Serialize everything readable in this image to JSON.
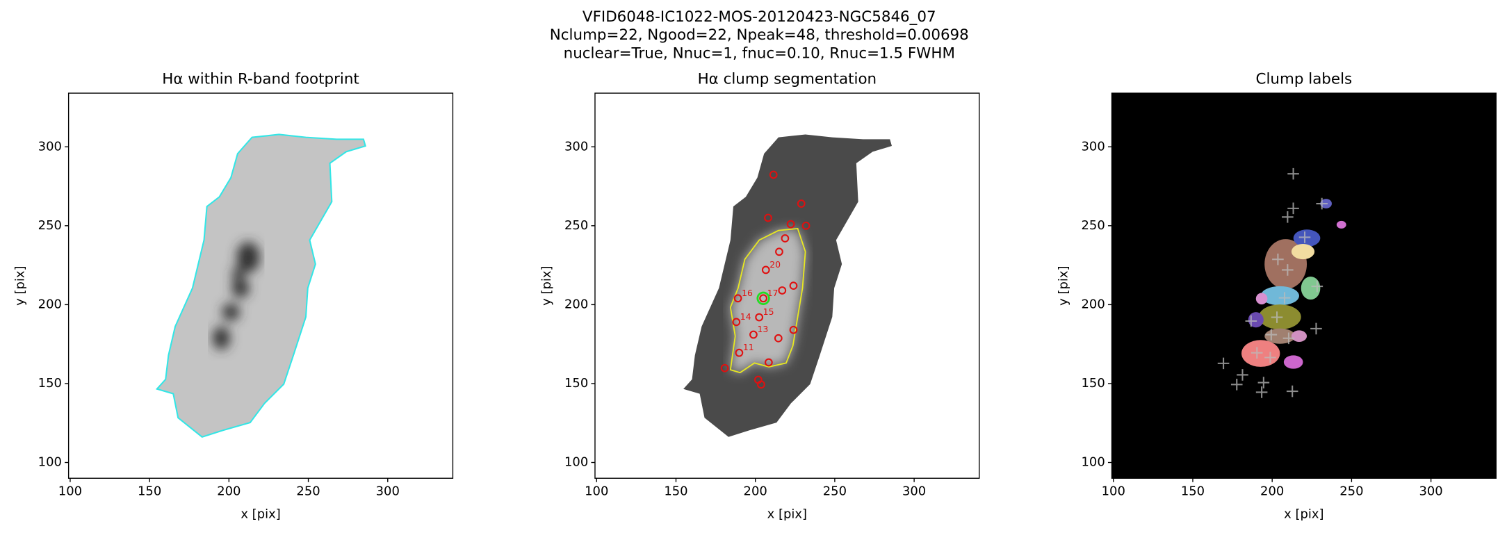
{
  "figure_title": [
    "VFID6048-IC1022-MOS-20120423-NGC5846_07",
    "Nclump=22, Ngood=22, Npeak=48, threshold=0.00698",
    "nuclear=True, Nnuc=1, fnuc=0.10, Rnuc=1.5 FWHM"
  ],
  "chart_data": [
    {
      "type": "image",
      "title": "Hα within R-band footprint",
      "xlabel": "x [pix]",
      "ylabel": "y [pix]",
      "xlim": [
        99,
        341
      ],
      "ylim": [
        90,
        334
      ],
      "xticks": [
        100,
        150,
        200,
        250,
        300
      ],
      "yticks": [
        100,
        150,
        200,
        250,
        300
      ],
      "contour_color": "#33e6e6"
    },
    {
      "type": "segmentation",
      "title": "Hα clump segmentation",
      "xlabel": "x [pix]",
      "ylabel": "y [pix]",
      "xlim": [
        99,
        341
      ],
      "ylim": [
        90,
        334
      ],
      "xticks": [
        100,
        150,
        200,
        250,
        300
      ],
      "yticks": [
        100,
        150,
        200,
        250,
        300
      ],
      "color": "#e01010",
      "contour_color": "#e8e820",
      "x": [
        211.4,
        228.9,
        208,
        222.3,
        231.9,
        218.7,
        215,
        206.6,
        216.9,
        224,
        189,
        205,
        202.4,
        188,
        224,
        198.8,
        214.5,
        189.8,
        208.4,
        180.7,
        201.8,
        203.6
      ],
      "values": [
        282.3,
        264,
        255,
        251,
        250,
        242,
        233.5,
        222,
        209,
        212,
        204,
        204,
        192,
        189,
        184,
        181,
        178.7,
        169.5,
        163.4,
        159.8,
        152.4,
        149.4
      ],
      "labels": [
        null,
        null,
        null,
        null,
        null,
        null,
        null,
        "20",
        null,
        null,
        "16",
        "17",
        "15",
        "14",
        null,
        "13",
        null,
        "11",
        null,
        null,
        null,
        null
      ],
      "nucleus": {
        "x": 205,
        "y": 204,
        "color": "#22dd22"
      }
    },
    {
      "type": "labels",
      "title": "Clump labels",
      "xlabel": "x [pix]",
      "ylabel": "y [pix]",
      "xlim": [
        99,
        341
      ],
      "ylim": [
        90,
        334
      ],
      "xticks": [
        100,
        150,
        200,
        250,
        300
      ],
      "yticks": [
        100,
        150,
        200,
        250,
        300
      ],
      "color": "#bbbbbb",
      "x": [
        213.3,
        213.3,
        209.7,
        231.3,
        220.5,
        203.6,
        209.7,
        228.3,
        207.8,
        203,
        186.7,
        199.4,
        210.4,
        190.4,
        198.8,
        169.3,
        181.3,
        177.7,
        194.6,
        193.4,
        212.7,
        227.7
      ],
      "values": [
        282.9,
        261,
        255.5,
        264,
        242.7,
        228.7,
        222,
        211.6,
        204.3,
        192,
        189.6,
        181,
        178.7,
        169.5,
        166.5,
        162.8,
        155.5,
        149.4,
        150.6,
        144.5,
        145.1,
        184.8
      ]
    }
  ]
}
